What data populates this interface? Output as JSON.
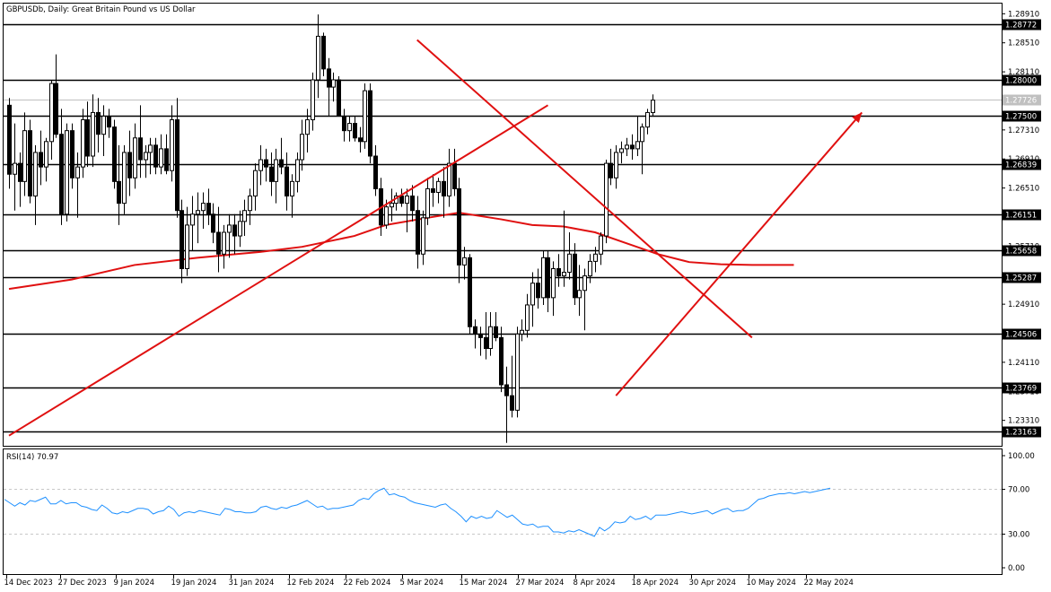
{
  "chart_data": {
    "type": "candlestick",
    "title": "GBPUSDb, Daily:  Great Britain Pound vs US Dollar",
    "symbol": "GBPUSDb",
    "timeframe": "Daily",
    "description": "Great Britain Pound vs US Dollar",
    "ylim": [
      1.2296,
      1.2905
    ],
    "price_ticks": [
      "1.28910",
      "1.28510",
      "1.28110",
      "1.27710",
      "1.27310",
      "1.26910",
      "1.26510",
      "1.26110",
      "1.25710",
      "1.25310",
      "1.24910",
      "1.24510",
      "1.24110",
      "1.23710",
      "1.23310"
    ],
    "x_labels": [
      "14 Dec 2023",
      "27 Dec 2023",
      "9 Jan 2024",
      "19 Jan 2024",
      "31 Jan 2024",
      "12 Feb 2024",
      "22 Feb 2024",
      "5 Mar 2024",
      "15 Mar 2024",
      "27 Mar 2024",
      "8 Apr 2024",
      "18 Apr 2024",
      "30 Apr 2024",
      "10 May 2024",
      "22 May 2024"
    ],
    "current_price": "1.27726",
    "levels": [
      {
        "value": 1.28772,
        "label": "1.28772"
      },
      {
        "value": 1.28,
        "label": "1.28000"
      },
      {
        "value": 1.275,
        "label": "1.27500"
      },
      {
        "value": 1.26839,
        "label": "1.26839"
      },
      {
        "value": 1.26151,
        "label": "1.26151"
      },
      {
        "value": 1.25658,
        "label": "1.25658"
      },
      {
        "value": 1.25287,
        "label": "1.25287"
      },
      {
        "value": 1.24506,
        "label": "1.24506"
      },
      {
        "value": 1.23769,
        "label": "1.23769"
      },
      {
        "value": 1.23163,
        "label": "1.23163"
      }
    ],
    "candles": [
      {
        "o": 1.2765,
        "h": 1.2775,
        "l": 1.265,
        "c": 1.267
      },
      {
        "o": 1.267,
        "h": 1.274,
        "l": 1.262,
        "c": 1.2685
      },
      {
        "o": 1.2685,
        "h": 1.27,
        "l": 1.2625,
        "c": 1.266
      },
      {
        "o": 1.266,
        "h": 1.2755,
        "l": 1.264,
        "c": 1.273
      },
      {
        "o": 1.273,
        "h": 1.2745,
        "l": 1.263,
        "c": 1.264
      },
      {
        "o": 1.264,
        "h": 1.271,
        "l": 1.26,
        "c": 1.27
      },
      {
        "o": 1.27,
        "h": 1.273,
        "l": 1.2655,
        "c": 1.268
      },
      {
        "o": 1.268,
        "h": 1.272,
        "l": 1.266,
        "c": 1.2715
      },
      {
        "o": 1.2715,
        "h": 1.28,
        "l": 1.269,
        "c": 1.2795
      },
      {
        "o": 1.2795,
        "h": 1.2835,
        "l": 1.272,
        "c": 1.2725
      },
      {
        "o": 1.2725,
        "h": 1.276,
        "l": 1.26,
        "c": 1.2615
      },
      {
        "o": 1.2615,
        "h": 1.274,
        "l": 1.2605,
        "c": 1.273
      },
      {
        "o": 1.273,
        "h": 1.274,
        "l": 1.265,
        "c": 1.2665
      },
      {
        "o": 1.2665,
        "h": 1.27,
        "l": 1.261,
        "c": 1.268
      },
      {
        "o": 1.268,
        "h": 1.276,
        "l": 1.2665,
        "c": 1.2745
      },
      {
        "o": 1.2745,
        "h": 1.277,
        "l": 1.268,
        "c": 1.2695
      },
      {
        "o": 1.2695,
        "h": 1.278,
        "l": 1.268,
        "c": 1.2755
      },
      {
        "o": 1.2755,
        "h": 1.2775,
        "l": 1.27,
        "c": 1.2725
      },
      {
        "o": 1.2725,
        "h": 1.2765,
        "l": 1.2695,
        "c": 1.275
      },
      {
        "o": 1.275,
        "h": 1.276,
        "l": 1.272,
        "c": 1.2735
      },
      {
        "o": 1.2735,
        "h": 1.2745,
        "l": 1.265,
        "c": 1.266
      },
      {
        "o": 1.266,
        "h": 1.271,
        "l": 1.26,
        "c": 1.263
      },
      {
        "o": 1.263,
        "h": 1.271,
        "l": 1.2615,
        "c": 1.27
      },
      {
        "o": 1.27,
        "h": 1.273,
        "l": 1.264,
        "c": 1.2665
      },
      {
        "o": 1.2665,
        "h": 1.274,
        "l": 1.265,
        "c": 1.272
      },
      {
        "o": 1.272,
        "h": 1.2765,
        "l": 1.2665,
        "c": 1.269
      },
      {
        "o": 1.269,
        "h": 1.271,
        "l": 1.2665,
        "c": 1.27
      },
      {
        "o": 1.27,
        "h": 1.272,
        "l": 1.267,
        "c": 1.271
      },
      {
        "o": 1.271,
        "h": 1.272,
        "l": 1.267,
        "c": 1.268
      },
      {
        "o": 1.268,
        "h": 1.2725,
        "l": 1.267,
        "c": 1.2705
      },
      {
        "o": 1.2705,
        "h": 1.2725,
        "l": 1.267,
        "c": 1.2675
      },
      {
        "o": 1.2675,
        "h": 1.2765,
        "l": 1.266,
        "c": 1.2745
      },
      {
        "o": 1.2745,
        "h": 1.2775,
        "l": 1.261,
        "c": 1.262
      },
      {
        "o": 1.262,
        "h": 1.2635,
        "l": 1.252,
        "c": 1.254
      },
      {
        "o": 1.254,
        "h": 1.2625,
        "l": 1.253,
        "c": 1.26
      },
      {
        "o": 1.26,
        "h": 1.264,
        "l": 1.2565,
        "c": 1.2615
      },
      {
        "o": 1.2615,
        "h": 1.2645,
        "l": 1.2575,
        "c": 1.262
      },
      {
        "o": 1.262,
        "h": 1.2645,
        "l": 1.2595,
        "c": 1.263
      },
      {
        "o": 1.263,
        "h": 1.265,
        "l": 1.26,
        "c": 1.2615
      },
      {
        "o": 1.2615,
        "h": 1.263,
        "l": 1.2575,
        "c": 1.259
      },
      {
        "o": 1.259,
        "h": 1.2625,
        "l": 1.2535,
        "c": 1.256
      },
      {
        "o": 1.256,
        "h": 1.26,
        "l": 1.254,
        "c": 1.259
      },
      {
        "o": 1.259,
        "h": 1.2615,
        "l": 1.2555,
        "c": 1.26
      },
      {
        "o": 1.26,
        "h": 1.2615,
        "l": 1.256,
        "c": 1.2585
      },
      {
        "o": 1.2585,
        "h": 1.262,
        "l": 1.257,
        "c": 1.2605
      },
      {
        "o": 1.2605,
        "h": 1.2635,
        "l": 1.2585,
        "c": 1.262
      },
      {
        "o": 1.262,
        "h": 1.265,
        "l": 1.26,
        "c": 1.264
      },
      {
        "o": 1.264,
        "h": 1.2685,
        "l": 1.262,
        "c": 1.2675
      },
      {
        "o": 1.2675,
        "h": 1.271,
        "l": 1.2655,
        "c": 1.269
      },
      {
        "o": 1.269,
        "h": 1.2705,
        "l": 1.266,
        "c": 1.268
      },
      {
        "o": 1.268,
        "h": 1.27,
        "l": 1.264,
        "c": 1.266
      },
      {
        "o": 1.266,
        "h": 1.2705,
        "l": 1.263,
        "c": 1.269
      },
      {
        "o": 1.269,
        "h": 1.272,
        "l": 1.267,
        "c": 1.268
      },
      {
        "o": 1.268,
        "h": 1.27,
        "l": 1.262,
        "c": 1.264
      },
      {
        "o": 1.264,
        "h": 1.267,
        "l": 1.261,
        "c": 1.266
      },
      {
        "o": 1.266,
        "h": 1.27,
        "l": 1.2645,
        "c": 1.269
      },
      {
        "o": 1.269,
        "h": 1.2745,
        "l": 1.2675,
        "c": 1.2725
      },
      {
        "o": 1.2725,
        "h": 1.276,
        "l": 1.27,
        "c": 1.2745
      },
      {
        "o": 1.2745,
        "h": 1.281,
        "l": 1.273,
        "c": 1.28
      },
      {
        "o": 1.28,
        "h": 1.289,
        "l": 1.2775,
        "c": 1.286
      },
      {
        "o": 1.286,
        "h": 1.2865,
        "l": 1.2805,
        "c": 1.2815
      },
      {
        "o": 1.2815,
        "h": 1.283,
        "l": 1.275,
        "c": 1.279
      },
      {
        "o": 1.279,
        "h": 1.281,
        "l": 1.277,
        "c": 1.28
      },
      {
        "o": 1.28,
        "h": 1.2805,
        "l": 1.275,
        "c": 1.275
      },
      {
        "o": 1.275,
        "h": 1.276,
        "l": 1.2715,
        "c": 1.273
      },
      {
        "o": 1.273,
        "h": 1.275,
        "l": 1.2715,
        "c": 1.274
      },
      {
        "o": 1.274,
        "h": 1.275,
        "l": 1.2715,
        "c": 1.272
      },
      {
        "o": 1.272,
        "h": 1.2735,
        "l": 1.27,
        "c": 1.2715
      },
      {
        "o": 1.2715,
        "h": 1.2795,
        "l": 1.2705,
        "c": 1.2785
      },
      {
        "o": 1.2785,
        "h": 1.2795,
        "l": 1.2685,
        "c": 1.2695
      },
      {
        "o": 1.2695,
        "h": 1.271,
        "l": 1.264,
        "c": 1.265
      },
      {
        "o": 1.265,
        "h": 1.2665,
        "l": 1.2585,
        "c": 1.26
      },
      {
        "o": 1.26,
        "h": 1.2635,
        "l": 1.2595,
        "c": 1.2625
      },
      {
        "o": 1.2625,
        "h": 1.265,
        "l": 1.2605,
        "c": 1.263
      },
      {
        "o": 1.263,
        "h": 1.2645,
        "l": 1.262,
        "c": 1.264
      },
      {
        "o": 1.264,
        "h": 1.265,
        "l": 1.2625,
        "c": 1.263
      },
      {
        "o": 1.263,
        "h": 1.265,
        "l": 1.259,
        "c": 1.264
      },
      {
        "o": 1.264,
        "h": 1.2655,
        "l": 1.2605,
        "c": 1.262
      },
      {
        "o": 1.262,
        "h": 1.264,
        "l": 1.254,
        "c": 1.256
      },
      {
        "o": 1.256,
        "h": 1.262,
        "l": 1.2545,
        "c": 1.261
      },
      {
        "o": 1.261,
        "h": 1.2665,
        "l": 1.26,
        "c": 1.265
      },
      {
        "o": 1.265,
        "h": 1.267,
        "l": 1.2625,
        "c": 1.2645
      },
      {
        "o": 1.2645,
        "h": 1.2665,
        "l": 1.263,
        "c": 1.266
      },
      {
        "o": 1.266,
        "h": 1.268,
        "l": 1.261,
        "c": 1.264
      },
      {
        "o": 1.264,
        "h": 1.2705,
        "l": 1.2625,
        "c": 1.2685
      },
      {
        "o": 1.2685,
        "h": 1.2705,
        "l": 1.264,
        "c": 1.265
      },
      {
        "o": 1.265,
        "h": 1.2665,
        "l": 1.252,
        "c": 1.2545
      },
      {
        "o": 1.2545,
        "h": 1.257,
        "l": 1.2525,
        "c": 1.2555
      },
      {
        "o": 1.2555,
        "h": 1.256,
        "l": 1.245,
        "c": 1.246
      },
      {
        "o": 1.246,
        "h": 1.247,
        "l": 1.243,
        "c": 1.245
      },
      {
        "o": 1.245,
        "h": 1.246,
        "l": 1.242,
        "c": 1.2445
      },
      {
        "o": 1.2445,
        "h": 1.248,
        "l": 1.2415,
        "c": 1.243
      },
      {
        "o": 1.243,
        "h": 1.248,
        "l": 1.242,
        "c": 1.246
      },
      {
        "o": 1.246,
        "h": 1.248,
        "l": 1.244,
        "c": 1.2445
      },
      {
        "o": 1.2445,
        "h": 1.246,
        "l": 1.237,
        "c": 1.238
      },
      {
        "o": 1.238,
        "h": 1.2405,
        "l": 1.23,
        "c": 1.2365
      },
      {
        "o": 1.2365,
        "h": 1.242,
        "l": 1.2335,
        "c": 1.2345
      },
      {
        "o": 1.2345,
        "h": 1.246,
        "l": 1.2335,
        "c": 1.245
      },
      {
        "o": 1.245,
        "h": 1.247,
        "l": 1.244,
        "c": 1.2455
      },
      {
        "o": 1.2455,
        "h": 1.2505,
        "l": 1.2445,
        "c": 1.249
      },
      {
        "o": 1.249,
        "h": 1.2535,
        "l": 1.246,
        "c": 1.252
      },
      {
        "o": 1.252,
        "h": 1.254,
        "l": 1.2485,
        "c": 1.25
      },
      {
        "o": 1.25,
        "h": 1.2565,
        "l": 1.249,
        "c": 1.2555
      },
      {
        "o": 1.2555,
        "h": 1.2565,
        "l": 1.248,
        "c": 1.25
      },
      {
        "o": 1.25,
        "h": 1.255,
        "l": 1.2475,
        "c": 1.254
      },
      {
        "o": 1.254,
        "h": 1.256,
        "l": 1.2515,
        "c": 1.253
      },
      {
        "o": 1.253,
        "h": 1.262,
        "l": 1.2515,
        "c": 1.2535
      },
      {
        "o": 1.2535,
        "h": 1.259,
        "l": 1.2525,
        "c": 1.256
      },
      {
        "o": 1.256,
        "h": 1.2575,
        "l": 1.249,
        "c": 1.25
      },
      {
        "o": 1.25,
        "h": 1.2545,
        "l": 1.2475,
        "c": 1.251
      },
      {
        "o": 1.251,
        "h": 1.254,
        "l": 1.2455,
        "c": 1.253
      },
      {
        "o": 1.253,
        "h": 1.256,
        "l": 1.252,
        "c": 1.255
      },
      {
        "o": 1.255,
        "h": 1.257,
        "l": 1.2535,
        "c": 1.256
      },
      {
        "o": 1.256,
        "h": 1.259,
        "l": 1.2545,
        "c": 1.2585
      },
      {
        "o": 1.2585,
        "h": 1.269,
        "l": 1.2575,
        "c": 1.2685
      },
      {
        "o": 1.2685,
        "h": 1.2705,
        "l": 1.2655,
        "c": 1.2665
      },
      {
        "o": 1.2665,
        "h": 1.271,
        "l": 1.265,
        "c": 1.27
      },
      {
        "o": 1.27,
        "h": 1.2715,
        "l": 1.2685,
        "c": 1.2705
      },
      {
        "o": 1.2705,
        "h": 1.272,
        "l": 1.2695,
        "c": 1.271
      },
      {
        "o": 1.271,
        "h": 1.2725,
        "l": 1.269,
        "c": 1.2705
      },
      {
        "o": 1.2705,
        "h": 1.275,
        "l": 1.2695,
        "c": 1.2715
      },
      {
        "o": 1.2715,
        "h": 1.274,
        "l": 1.267,
        "c": 1.2735
      },
      {
        "o": 1.2735,
        "h": 1.276,
        "l": 1.2725,
        "c": 1.2755
      },
      {
        "o": 1.2755,
        "h": 1.278,
        "l": 1.275,
        "c": 1.2772
      }
    ],
    "trendlines": [
      {
        "from": [
          0,
          1.231
        ],
        "to": [
          103,
          1.2765
        ]
      },
      {
        "from": [
          78,
          1.2855
        ],
        "to": [
          142,
          1.2445
        ]
      },
      {
        "from": [
          116,
          1.2365
        ],
        "to": [
          163,
          1.2755
        ]
      }
    ],
    "sma_line": [
      [
        0,
        1.2512
      ],
      [
        12,
        1.2525
      ],
      [
        24,
        1.2545
      ],
      [
        36,
        1.2555
      ],
      [
        48,
        1.2563
      ],
      [
        56,
        1.257
      ],
      [
        66,
        1.2585
      ],
      [
        72,
        1.26
      ],
      [
        80,
        1.261
      ],
      [
        86,
        1.2617
      ],
      [
        94,
        1.2608
      ],
      [
        100,
        1.26
      ],
      [
        106,
        1.2598
      ],
      [
        112,
        1.259
      ],
      [
        118,
        1.2575
      ],
      [
        124,
        1.256
      ],
      [
        130,
        1.2549
      ],
      [
        136,
        1.2546
      ],
      [
        142,
        1.2545
      ],
      [
        150,
        1.2545
      ]
    ],
    "rsi": {
      "label": "RSI(14) 70.97",
      "value": 70.97,
      "ylim": [
        0,
        100
      ],
      "ticks": [
        "100.00",
        "70.00",
        "30.00",
        "0.00"
      ],
      "levels": [
        70,
        30
      ],
      "values": [
        61,
        58,
        55,
        58,
        56,
        60,
        59,
        61,
        63,
        57,
        57,
        60,
        57,
        58,
        58,
        55,
        54,
        52,
        51,
        56,
        53,
        49,
        48,
        50,
        49,
        51,
        53,
        53,
        52,
        48,
        50,
        51,
        55,
        52,
        46,
        49,
        50,
        49,
        51,
        50,
        49,
        48,
        47,
        53,
        52,
        50,
        50,
        49,
        49,
        50,
        54,
        55,
        53,
        52,
        54,
        53,
        55,
        56,
        58,
        60,
        57,
        54,
        55,
        52,
        53,
        53,
        54,
        55,
        56,
        60,
        62,
        61,
        66,
        69,
        71,
        65,
        66,
        64,
        63,
        60,
        58,
        57,
        56,
        55,
        54,
        56,
        57,
        53,
        50,
        46,
        41,
        46,
        44,
        46,
        44,
        45,
        51,
        48,
        45,
        47,
        43,
        39,
        38,
        39,
        36,
        37,
        37,
        32,
        32,
        31,
        33,
        32,
        34,
        32,
        30,
        28,
        36,
        33,
        36,
        41,
        40,
        41,
        46,
        43,
        44,
        46,
        43,
        47,
        47,
        47,
        48,
        49,
        50,
        49,
        48,
        49,
        50,
        51,
        48,
        50,
        52,
        53,
        50,
        51,
        51,
        53,
        57,
        61,
        62,
        64,
        65,
        66,
        66,
        67,
        66,
        67,
        68,
        67,
        68,
        69,
        70,
        71
      ]
    }
  }
}
